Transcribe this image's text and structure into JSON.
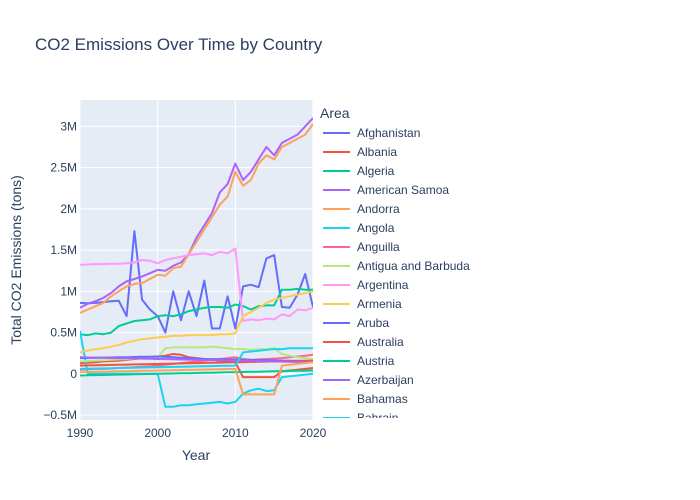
{
  "chart_data": {
    "type": "line",
    "title": "CO2 Emissions Over Time by Country",
    "xlabel": "Year",
    "ylabel": "Total CO2 Emissions (tons)",
    "xlim": [
      1990,
      2020
    ],
    "ylim": [
      -560000,
      3320000
    ],
    "x_ticks": [
      1990,
      2000,
      2010,
      2020
    ],
    "x_tick_labels": [
      "1990",
      "2000",
      "2010",
      "2020"
    ],
    "y_ticks": [
      -500000,
      0,
      500000,
      1000000,
      1500000,
      2000000,
      2500000,
      3000000
    ],
    "y_tick_labels": [
      "−0.5M",
      "0",
      "0.5M",
      "1M",
      "1.5M",
      "2M",
      "2.5M",
      "3M"
    ],
    "grid": true,
    "legend_title": "Area",
    "legend_position": "right",
    "x": [
      1990,
      1991,
      1992,
      1993,
      1994,
      1995,
      1996,
      1997,
      1998,
      1999,
      2000,
      2001,
      2002,
      2003,
      2004,
      2005,
      2006,
      2007,
      2008,
      2009,
      2010,
      2011,
      2012,
      2013,
      2014,
      2015,
      2016,
      2017,
      2018,
      2019,
      2020
    ],
    "series": [
      {
        "name": "Afghanistan",
        "color": "#636efa",
        "values": [
          860000,
          855000,
          860000,
          870000,
          880000,
          885000,
          700000,
          1730000,
          900000,
          780000,
          700000,
          500000,
          1000000,
          650000,
          1000000,
          700000,
          1130000,
          550000,
          550000,
          940000,
          550000,
          1060000,
          1080000,
          1050000,
          1400000,
          1440000,
          810000,
          800000,
          960000,
          1210000,
          810000
        ]
      },
      {
        "name": "Albania",
        "color": "#EF553B",
        "values": [
          130000,
          135000,
          140000,
          150000,
          155000,
          160000,
          170000,
          180000,
          190000,
          200000,
          210000,
          220000,
          240000,
          230000,
          200000,
          190000,
          180000,
          170000,
          160000,
          150000,
          140000,
          -40000,
          -40000,
          -40000,
          -40000,
          -40000,
          30000,
          40000,
          50000,
          60000,
          70000
        ]
      },
      {
        "name": "Algeria",
        "color": "#00cc96",
        "values": [
          480000,
          470000,
          490000,
          480000,
          500000,
          580000,
          610000,
          640000,
          650000,
          660000,
          700000,
          710000,
          700000,
          720000,
          760000,
          780000,
          800000,
          810000,
          810000,
          800000,
          840000,
          820000,
          780000,
          820000,
          830000,
          830000,
          1020000,
          1020000,
          1030000,
          1020000,
          1020000
        ]
      },
      {
        "name": "American Samoa",
        "color": "#ab63fa",
        "values": [
          800000,
          850000,
          880000,
          920000,
          980000,
          1060000,
          1120000,
          1150000,
          1180000,
          1220000,
          1260000,
          1250000,
          1310000,
          1350000,
          1450000,
          1650000,
          1800000,
          1950000,
          2200000,
          2300000,
          2550000,
          2350000,
          2450000,
          2600000,
          2750000,
          2650000,
          2800000,
          2850000,
          2900000,
          3000000,
          3100000
        ]
      },
      {
        "name": "Andorra",
        "color": "#FFA15A",
        "values": [
          740000,
          780000,
          820000,
          860000,
          940000,
          1000000,
          1060000,
          1090000,
          1100000,
          1150000,
          1200000,
          1190000,
          1280000,
          1300000,
          1450000,
          1600000,
          1750000,
          1900000,
          2050000,
          2150000,
          2450000,
          2280000,
          2350000,
          2550000,
          2650000,
          2600000,
          2750000,
          2800000,
          2850000,
          2900000,
          3030000
        ]
      },
      {
        "name": "Angola",
        "color": "#19d3f3",
        "values": [
          520000,
          0,
          0,
          0,
          0,
          0,
          0,
          0,
          0,
          0,
          0,
          -400000,
          -400000,
          -380000,
          -380000,
          -370000,
          -360000,
          -350000,
          -340000,
          -360000,
          -340000,
          -240000,
          -200000,
          -180000,
          -210000,
          -200000,
          -40000,
          -30000,
          -20000,
          -10000,
          0
        ]
      },
      {
        "name": "Anguilla",
        "color": "#FF6692",
        "values": [
          50000,
          55000,
          60000,
          60000,
          65000,
          70000,
          75000,
          80000,
          85000,
          90000,
          100000,
          110000,
          120000,
          130000,
          140000,
          150000,
          160000,
          170000,
          180000,
          190000,
          200000,
          180000,
          170000,
          175000,
          180000,
          185000,
          190000,
          200000,
          210000,
          220000,
          230000
        ]
      },
      {
        "name": "Antigua and Barbuda",
        "color": "#B6E880",
        "values": [
          150000,
          155000,
          160000,
          165000,
          170000,
          175000,
          180000,
          185000,
          190000,
          195000,
          200000,
          310000,
          320000,
          320000,
          320000,
          320000,
          320000,
          330000,
          320000,
          310000,
          300000,
          300000,
          290000,
          300000,
          300000,
          310000,
          240000,
          220000,
          200000,
          190000,
          180000
        ]
      },
      {
        "name": "Argentina",
        "color": "#FF97FF",
        "values": [
          1320000,
          1325000,
          1330000,
          1330000,
          1335000,
          1335000,
          1340000,
          1350000,
          1380000,
          1370000,
          1340000,
          1380000,
          1400000,
          1420000,
          1440000,
          1450000,
          1460000,
          1440000,
          1480000,
          1460000,
          1520000,
          640000,
          660000,
          650000,
          670000,
          660000,
          720000,
          700000,
          780000,
          770000,
          800000
        ]
      },
      {
        "name": "Armenia",
        "color": "#FECB52",
        "values": [
          260000,
          280000,
          300000,
          310000,
          330000,
          350000,
          380000,
          400000,
          420000,
          430000,
          440000,
          450000,
          460000,
          460000,
          470000,
          470000,
          470000,
          470000,
          480000,
          480000,
          490000,
          700000,
          750000,
          800000,
          860000,
          900000,
          920000,
          940000,
          960000,
          980000,
          1000000
        ]
      },
      {
        "name": "Aruba",
        "color": "#636efa",
        "values": [
          190000,
          192000,
          194000,
          196000,
          198000,
          200000,
          202000,
          204000,
          206000,
          208000,
          210000,
          205000,
          200000,
          195000,
          190000,
          185000,
          180000,
          178000,
          176000,
          174000,
          172000,
          170000,
          168000,
          166000,
          164000,
          162000,
          160000,
          158000,
          156000,
          154000,
          152000
        ]
      },
      {
        "name": "Australia",
        "color": "#EF553B",
        "values": [
          100000,
          102000,
          104000,
          106000,
          108000,
          110000,
          112000,
          114000,
          116000,
          118000,
          120000,
          122000,
          124000,
          126000,
          128000,
          130000,
          132000,
          134000,
          136000,
          138000,
          140000,
          142000,
          144000,
          146000,
          148000,
          150000,
          152000,
          154000,
          156000,
          158000,
          160000
        ]
      },
      {
        "name": "Austria",
        "color": "#00cc96",
        "values": [
          -20000,
          -18000,
          -16000,
          -14000,
          -12000,
          -10000,
          -8000,
          -6000,
          -4000,
          -2000,
          0,
          2000,
          4000,
          6000,
          8000,
          10000,
          12000,
          14000,
          16000,
          18000,
          20000,
          22000,
          24000,
          26000,
          28000,
          30000,
          32000,
          34000,
          36000,
          38000,
          40000
        ]
      },
      {
        "name": "Azerbaijan",
        "color": "#ab63fa",
        "values": [
          200000,
          198000,
          196000,
          194000,
          192000,
          190000,
          188000,
          186000,
          184000,
          182000,
          180000,
          178000,
          176000,
          174000,
          172000,
          170000,
          168000,
          166000,
          164000,
          162000,
          160000,
          158000,
          156000,
          154000,
          152000,
          150000,
          148000,
          146000,
          144000,
          142000,
          140000
        ]
      },
      {
        "name": "Bahamas",
        "color": "#FFA15A",
        "values": [
          20000,
          22000,
          24000,
          26000,
          28000,
          30000,
          32000,
          34000,
          36000,
          38000,
          40000,
          42000,
          44000,
          46000,
          48000,
          50000,
          52000,
          54000,
          56000,
          58000,
          60000,
          -250000,
          -250000,
          -250000,
          -250000,
          -250000,
          100000,
          110000,
          120000,
          130000,
          140000
        ]
      },
      {
        "name": "Bahrain",
        "color": "#19d3f3",
        "values": [
          60000,
          62000,
          64000,
          66000,
          68000,
          70000,
          72000,
          74000,
          76000,
          78000,
          80000,
          82000,
          84000,
          86000,
          88000,
          90000,
          92000,
          94000,
          96000,
          98000,
          100000,
          260000,
          270000,
          280000,
          290000,
          300000,
          300000,
          310000,
          310000,
          310000,
          310000
        ]
      }
    ]
  }
}
